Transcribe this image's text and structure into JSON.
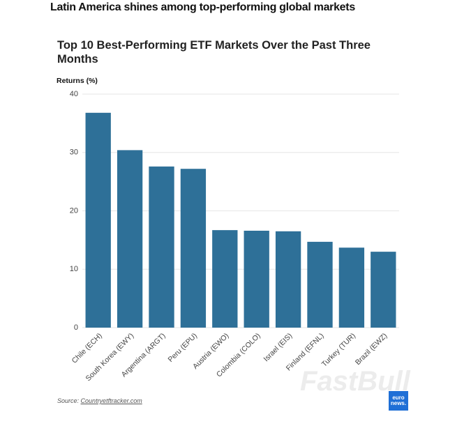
{
  "header": {
    "title": "Latin America shines among top-performing global markets"
  },
  "chart_data": {
    "type": "bar",
    "title": "Top 10 Best-Performing ETF Markets Over the Past Three Months",
    "y_label": "Returns (%)",
    "categories": [
      "Chile (ECH)",
      "South Korea (EWY)",
      "Argentina (ARGT)",
      "Peru (EPU)",
      "Austria (EWO)",
      "Colombia (COLO)",
      "Israel (EIS)",
      "Finland (EFNL)",
      "Turkey (TUR)",
      "Brazil (EWZ)"
    ],
    "values": [
      36.8,
      30.4,
      27.6,
      27.2,
      16.7,
      16.6,
      16.5,
      14.7,
      13.7,
      13.0
    ],
    "color": "#2e7098",
    "ylim": [
      0,
      40
    ],
    "yticks": [
      0,
      10,
      20,
      30,
      40
    ],
    "grid": true
  },
  "footer": {
    "source_label": "Source:",
    "source_link": "Countryetftracker.com",
    "logo": "euro news.",
    "watermark": "FastBull"
  }
}
